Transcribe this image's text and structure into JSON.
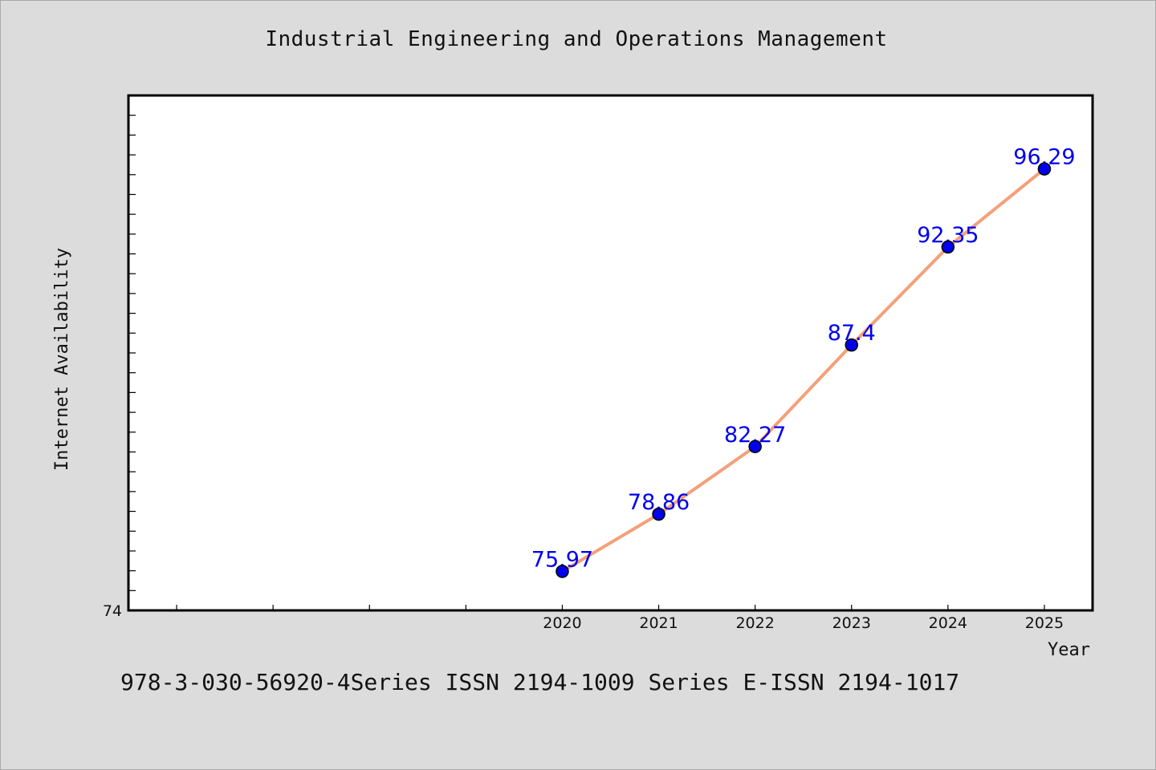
{
  "title": "Industrial Engineering and Operations Management",
  "footer": "978-3-030-56920-4Series ISSN 2194-1009 Series E-ISSN 2194-1017",
  "chart_data": {
    "type": "line",
    "title": "Industrial Engineering and Operations Management",
    "xlabel": "Year",
    "ylabel": "Internet Availability",
    "x": [
      "2020",
      "2021",
      "2022",
      "2023",
      "2024",
      "2025"
    ],
    "series": [
      {
        "values": [
          75.97,
          78.86,
          82.27,
          87.4,
          92.35,
          96.29
        ],
        "line_color": "#f4a07a",
        "marker_color": "#0000ee"
      }
    ],
    "data_labels": [
      "75.97",
      "78.86",
      "82.27",
      "87.4",
      "92.35",
      "96.29"
    ],
    "data_label_color": "#0000ee",
    "y_tick_labels": [
      "74"
    ],
    "ylim": [
      74,
      100
    ],
    "xlim": [
      2015.5,
      2025.5
    ],
    "grid": false,
    "legend": "none"
  }
}
